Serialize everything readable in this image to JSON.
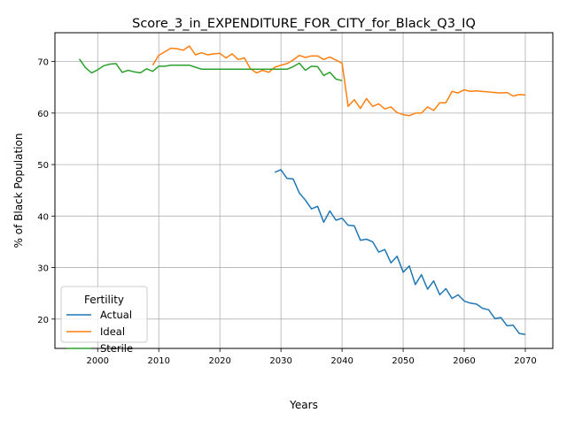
{
  "chart_data": {
    "type": "line",
    "title": "Score_3_in_EXPENDITURE_FOR_CITY_for_Black_Q3_IQ",
    "xlabel": "Years",
    "ylabel": "% of Black Population",
    "xlim": [
      1993,
      2074.5
    ],
    "ylim": [
      14.3,
      75.6
    ],
    "xticks": [
      2000,
      2010,
      2020,
      2030,
      2040,
      2050,
      2060,
      2070
    ],
    "yticks": [
      20,
      30,
      40,
      50,
      60,
      70
    ],
    "grid": true,
    "legend": {
      "title": "Fertility",
      "placement": "lower-left"
    },
    "series": [
      {
        "name": "Actual",
        "color": "#1f77b4",
        "x": [
          2029,
          2030,
          2031,
          2032,
          2033,
          2034,
          2035,
          2036,
          2037,
          2038,
          2039,
          2040,
          2041,
          2042,
          2043,
          2044,
          2045,
          2046,
          2047,
          2048,
          2049,
          2050,
          2051,
          2052,
          2053,
          2054,
          2055,
          2056,
          2057,
          2058,
          2059,
          2060,
          2061,
          2062,
          2063,
          2064,
          2065,
          2066,
          2067,
          2068,
          2069,
          2070
        ],
        "y": [
          48.5,
          49.0,
          47.3,
          47.2,
          44.5,
          43.1,
          41.4,
          41.9,
          38.8,
          41.0,
          39.2,
          39.6,
          38.2,
          38.1,
          35.3,
          35.5,
          35.0,
          33.0,
          33.5,
          30.9,
          32.2,
          29.1,
          30.3,
          26.7,
          28.6,
          25.8,
          27.4,
          24.7,
          25.9,
          24.0,
          24.7,
          23.5,
          23.1,
          22.9,
          22.1,
          21.8,
          20.1,
          20.3,
          18.7,
          18.8,
          17.2,
          17.0
        ]
      },
      {
        "name": "Ideal",
        "color": "#ff7f0e",
        "x": [
          2009,
          2010,
          2011,
          2012,
          2013,
          2014,
          2015,
          2016,
          2017,
          2018,
          2019,
          2020,
          2021,
          2022,
          2023,
          2024,
          2025,
          2026,
          2027,
          2028,
          2029,
          2030,
          2031,
          2032,
          2033,
          2034,
          2035,
          2036,
          2037,
          2038,
          2039,
          2040,
          2041,
          2042,
          2043,
          2044,
          2045,
          2046,
          2047,
          2048,
          2049,
          2050,
          2051,
          2052,
          2053,
          2054,
          2055,
          2056,
          2057,
          2058,
          2059,
          2060,
          2061,
          2062,
          2063,
          2064,
          2065,
          2066,
          2067,
          2068,
          2069,
          2070
        ],
        "y": [
          69.3,
          71.2,
          71.9,
          72.6,
          72.5,
          72.2,
          73.0,
          71.3,
          71.7,
          71.3,
          71.5,
          71.6,
          70.7,
          71.5,
          70.4,
          70.7,
          68.6,
          67.8,
          68.3,
          67.9,
          68.9,
          69.3,
          69.6,
          70.3,
          71.2,
          70.8,
          71.1,
          71.1,
          70.4,
          70.9,
          70.3,
          69.7,
          61.3,
          62.6,
          60.9,
          62.8,
          61.3,
          61.8,
          60.8,
          61.2,
          60.1,
          59.7,
          59.5,
          60.0,
          60.0,
          61.2,
          60.5,
          62.0,
          62.0,
          64.2,
          63.9,
          64.5,
          64.2,
          64.3,
          64.2,
          64.1,
          64.0,
          63.9,
          64.0,
          63.3,
          63.6,
          63.5
        ]
      },
      {
        "name": "Sterile",
        "color": "#2ca02c",
        "x": [
          1997,
          1998,
          1999,
          2000,
          2001,
          2002,
          2003,
          2004,
          2005,
          2006,
          2007,
          2008,
          2009,
          2010,
          2011,
          2012,
          2013,
          2014,
          2015,
          2016,
          2017,
          2018,
          2019,
          2020,
          2021,
          2022,
          2023,
          2024,
          2025,
          2026,
          2027,
          2028,
          2029,
          2030,
          2031,
          2032,
          2033,
          2034,
          2035,
          2036,
          2037,
          2038,
          2039,
          2040
        ],
        "y": [
          70.5,
          68.8,
          67.8,
          68.4,
          69.2,
          69.5,
          69.6,
          67.9,
          68.3,
          68.0,
          67.8,
          68.6,
          68.1,
          69.1,
          69.1,
          69.3,
          69.3,
          69.3,
          69.3,
          68.9,
          68.5,
          68.5,
          68.5,
          68.5,
          68.5,
          68.5,
          68.5,
          68.5,
          68.5,
          68.5,
          68.5,
          68.5,
          68.5,
          68.5,
          68.5,
          69.0,
          69.7,
          68.3,
          69.1,
          69.0,
          67.3,
          67.9,
          66.6,
          66.3
        ]
      }
    ]
  }
}
